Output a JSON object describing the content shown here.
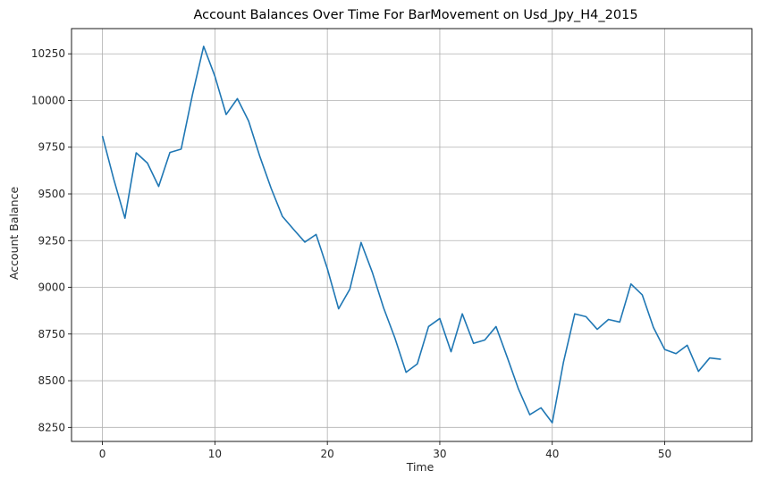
{
  "chart_data": {
    "type": "line",
    "title": "Account Balances Over Time For BarMovement on Usd_Jpy_H4_2015",
    "xlabel": "Time",
    "ylabel": "Account Balance",
    "x": [
      0,
      1,
      2,
      3,
      4,
      5,
      6,
      7,
      8,
      9,
      10,
      11,
      12,
      13,
      14,
      15,
      16,
      17,
      18,
      19,
      20,
      21,
      22,
      23,
      24,
      25,
      26,
      27,
      28,
      29,
      30,
      31,
      32,
      33,
      34,
      35,
      36,
      37,
      38,
      39,
      40,
      41,
      42,
      43,
      44,
      45,
      46,
      47,
      48,
      49,
      50,
      51,
      52,
      53,
      54,
      55
    ],
    "series": [
      {
        "color": "#1f77b4",
        "values": [
          9810,
          9580,
          9370,
          9720,
          9665,
          9540,
          9722,
          9740,
          10030,
          10290,
          10130,
          9925,
          10010,
          9890,
          9700,
          9530,
          9380,
          9310,
          9242,
          9283,
          9100,
          8885,
          8990,
          9240,
          9080,
          8890,
          8730,
          8545,
          8590,
          8790,
          8833,
          8655,
          8858,
          8700,
          8718,
          8790,
          8625,
          8455,
          8318,
          8355,
          8275,
          8600,
          8858,
          8843,
          8775,
          8828,
          8814,
          9018,
          8960,
          8785,
          8667,
          8645,
          8690,
          8550,
          8622,
          8615
        ]
      }
    ],
    "xlim": [
      -2.75,
      57.75
    ],
    "ylim": [
      8175,
      10385
    ],
    "xticks": [
      0,
      10,
      20,
      30,
      40,
      50
    ],
    "yticks": [
      8250,
      8500,
      8750,
      9000,
      9250,
      9500,
      9750,
      10000,
      10250
    ],
    "grid": true
  }
}
